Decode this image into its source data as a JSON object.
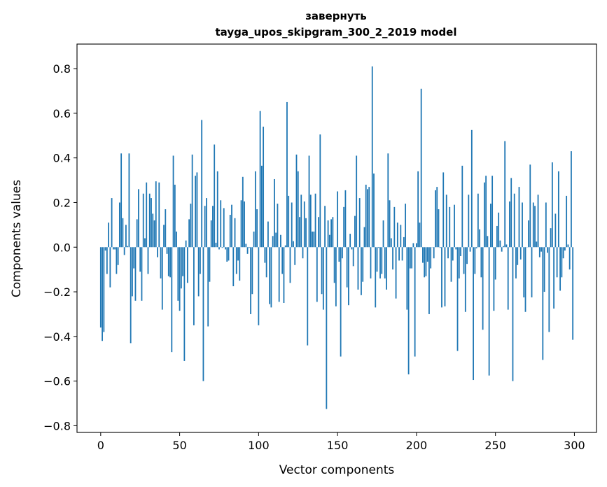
{
  "chart_data": {
    "type": "bar",
    "title_lines": [
      "завернуть",
      "tayga_upos_skipgram_300_2_2019 model"
    ],
    "xlabel": "Vector components",
    "ylabel": "Components values",
    "xlim": [
      -15,
      314
    ],
    "ylim": [
      -0.83,
      0.91
    ],
    "xticks": [
      0,
      50,
      100,
      150,
      200,
      250,
      300
    ],
    "xtick_labels": [
      "0",
      "50",
      "100",
      "150",
      "200",
      "250",
      "300"
    ],
    "yticks": [
      -0.8,
      -0.6,
      -0.4,
      -0.2,
      0.0,
      0.2,
      0.4,
      0.6,
      0.8
    ],
    "ytick_labels": [
      "−0.8",
      "−0.6",
      "−0.4",
      "−0.2",
      "0.0",
      "0.2",
      "0.4",
      "0.6",
      "0.8"
    ],
    "grid": false,
    "bar_color": "#1f77b4",
    "values": [
      -0.36,
      -0.42,
      -0.38,
      -0.015,
      -0.12,
      0.11,
      -0.18,
      0.22,
      -0.01,
      -0.01,
      -0.12,
      -0.08,
      0.2,
      0.42,
      0.13,
      -0.035,
      0.1,
      0.005,
      0.42,
      -0.43,
      -0.22,
      -0.095,
      -0.24,
      0.125,
      0.26,
      -0.11,
      -0.24,
      0.24,
      0.04,
      0.29,
      -0.12,
      0.24,
      0.22,
      0.15,
      0.12,
      0.295,
      -0.045,
      0.29,
      -0.14,
      -0.28,
      0.1,
      0.17,
      -0.03,
      -0.13,
      -0.135,
      -0.47,
      0.41,
      0.28,
      0.07,
      -0.24,
      -0.285,
      -0.185,
      -0.13,
      -0.51,
      0.03,
      -0.16,
      0.125,
      0.195,
      0.415,
      -0.35,
      0.32,
      0.335,
      -0.22,
      -0.12,
      0.57,
      -0.6,
      0.185,
      0.22,
      -0.355,
      -0.155,
      0.12,
      0.185,
      0.46,
      0.02,
      0.34,
      -0.01,
      0.21,
      -0.003,
      0.175,
      -0.01,
      -0.065,
      -0.06,
      0.145,
      0.19,
      -0.175,
      0.13,
      -0.12,
      -0.06,
      -0.15,
      0.21,
      0.315,
      0.205,
      0.015,
      -0.03,
      -0.003,
      -0.3,
      -0.21,
      0.07,
      0.34,
      0.17,
      -0.35,
      0.61,
      0.365,
      0.54,
      -0.07,
      -0.135,
      0.115,
      -0.255,
      -0.27,
      0.05,
      0.305,
      0.065,
      0.195,
      -0.245,
      0.055,
      -0.12,
      -0.25,
      0.008,
      0.65,
      0.23,
      -0.16,
      0.2,
      0.027,
      -0.08,
      0.415,
      0.34,
      0.135,
      0.235,
      -0.05,
      0.205,
      0.13,
      -0.44,
      0.41,
      0.235,
      0.07,
      0.07,
      0.24,
      -0.245,
      0.135,
      0.505,
      -0.21,
      -0.28,
      0.185,
      -0.725,
      0.12,
      0.055,
      0.125,
      0.135,
      -0.16,
      -0.265,
      0.25,
      -0.065,
      -0.49,
      -0.05,
      0.18,
      0.255,
      -0.18,
      -0.26,
      0.06,
      -0.01,
      -0.085,
      0.14,
      0.41,
      -0.19,
      0.22,
      -0.215,
      -0.155,
      0.09,
      0.28,
      0.26,
      0.27,
      -0.14,
      0.81,
      0.33,
      -0.27,
      -0.11,
      -0.003,
      -0.14,
      -0.12,
      0.12,
      -0.14,
      -0.19,
      0.42,
      0.21,
      0.04,
      -0.1,
      0.18,
      -0.23,
      0.11,
      -0.06,
      0.1,
      -0.06,
      0.045,
      0.195,
      -0.28,
      -0.57,
      -0.095,
      -0.095,
      0.018,
      -0.49,
      0.018,
      0.34,
      0.11,
      0.71,
      -0.07,
      -0.135,
      -0.13,
      -0.065,
      -0.3,
      -0.095,
      0.0,
      -0.05,
      0.255,
      0.27,
      0.17,
      -0.003,
      -0.27,
      0.335,
      -0.265,
      0.235,
      -0.05,
      0.18,
      -0.155,
      -0.06,
      0.19,
      -0.01,
      -0.465,
      -0.14,
      -0.04,
      0.365,
      -0.12,
      -0.29,
      -0.075,
      0.235,
      -0.02,
      0.525,
      -0.595,
      -0.12,
      -0.005,
      0.24,
      0.08,
      -0.135,
      -0.37,
      0.29,
      0.32,
      0.05,
      -0.575,
      0.195,
      0.32,
      -0.285,
      -0.145,
      0.095,
      0.155,
      0.03,
      -0.02,
      0.005,
      0.475,
      0.012,
      -0.28,
      0.205,
      0.31,
      -0.6,
      0.24,
      -0.14,
      -0.08,
      0.27,
      -0.055,
      0.2,
      -0.225,
      -0.29,
      0.0,
      0.12,
      0.37,
      -0.225,
      0.2,
      0.185,
      0.025,
      0.235,
      -0.045,
      -0.02,
      -0.505,
      -0.2,
      0.2,
      -0.025,
      -0.38,
      0.085,
      0.38,
      -0.275,
      0.15,
      -0.135,
      0.34,
      -0.195,
      -0.135,
      -0.05,
      -0.015,
      0.23,
      0.012,
      -0.1,
      0.43,
      -0.415
    ]
  }
}
